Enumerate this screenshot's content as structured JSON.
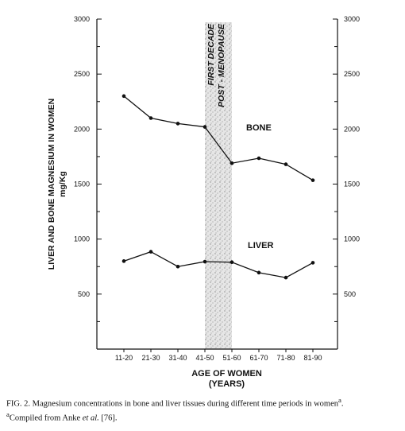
{
  "chart_data": {
    "type": "line",
    "categories": [
      "11-20",
      "21-30",
      "31-40",
      "41-50",
      "51-60",
      "61-70",
      "71-80",
      "81-90"
    ],
    "series": [
      {
        "name": "BONE",
        "values": [
          2300,
          2100,
          2050,
          2020,
          1690,
          1735,
          1680,
          1535
        ]
      },
      {
        "name": "LIVER",
        "values": [
          800,
          885,
          750,
          795,
          790,
          695,
          650,
          785
        ]
      }
    ],
    "highlight_band": {
      "from": "41-50",
      "to": "51-60",
      "label_lines": [
        "FIRST DECADE",
        "POST - MENOPAUSE"
      ]
    },
    "xlabel_lines": [
      "AGE OF WOMEN",
      "(YEARS)"
    ],
    "ylabel_lines": [
      "LIVER AND BONE MAGNESIUM IN WOMEN",
      "mg/Kg"
    ],
    "ylim": [
      0,
      3000
    ],
    "yticks_labeled": [
      500,
      1000,
      1500,
      2000,
      2500,
      3000
    ],
    "grid": false
  },
  "caption": {
    "line1": "FIG. 2. Magnesium concentrations in bone and liver tissues during different time periods in women",
    "line1_sup": "a",
    "line1_end": ".",
    "line2_sup": "a",
    "line2_pre": "Compiled from Anke ",
    "line2_em": "et al.",
    "line2_post": " [76]."
  }
}
